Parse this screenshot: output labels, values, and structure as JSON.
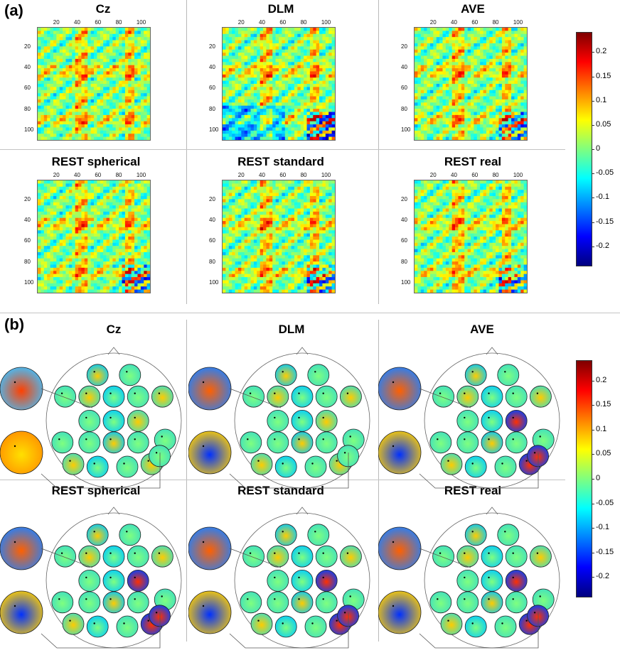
{
  "panel_a": {
    "label": "(a)",
    "titles": [
      "Cz",
      "DLM",
      "AVE",
      "REST spherical",
      "REST standard",
      "REST real"
    ],
    "x_ticks": [
      "20",
      "40",
      "60",
      "80",
      "100"
    ],
    "y_ticks": [
      "20",
      "40",
      "60",
      "80",
      "100"
    ],
    "colorbar_ticks": [
      "0.2",
      "0.15",
      "0.1",
      "0.05",
      "0",
      "-0.05",
      "-0.1",
      "-0.15",
      "-0.2"
    ]
  },
  "panel_b": {
    "label": "(b)",
    "titles": [
      "Cz",
      "DLM",
      "AVE",
      "REST spherical",
      "REST standard",
      "REST real"
    ],
    "colorbar_ticks": [
      "0.2",
      "0.15",
      "0.1",
      "0.05",
      "0",
      "-0.05",
      "-0.1",
      "-0.15",
      "-0.2"
    ]
  },
  "colors": {
    "jet_dark_blue": "#00007f",
    "jet_blue": "#0040ff",
    "jet_cyan": "#00ffff",
    "jet_green": "#7fff7f",
    "jet_yellow": "#ffff00",
    "jet_orange": "#ff8000",
    "jet_dark_red": "#7f0000"
  }
}
